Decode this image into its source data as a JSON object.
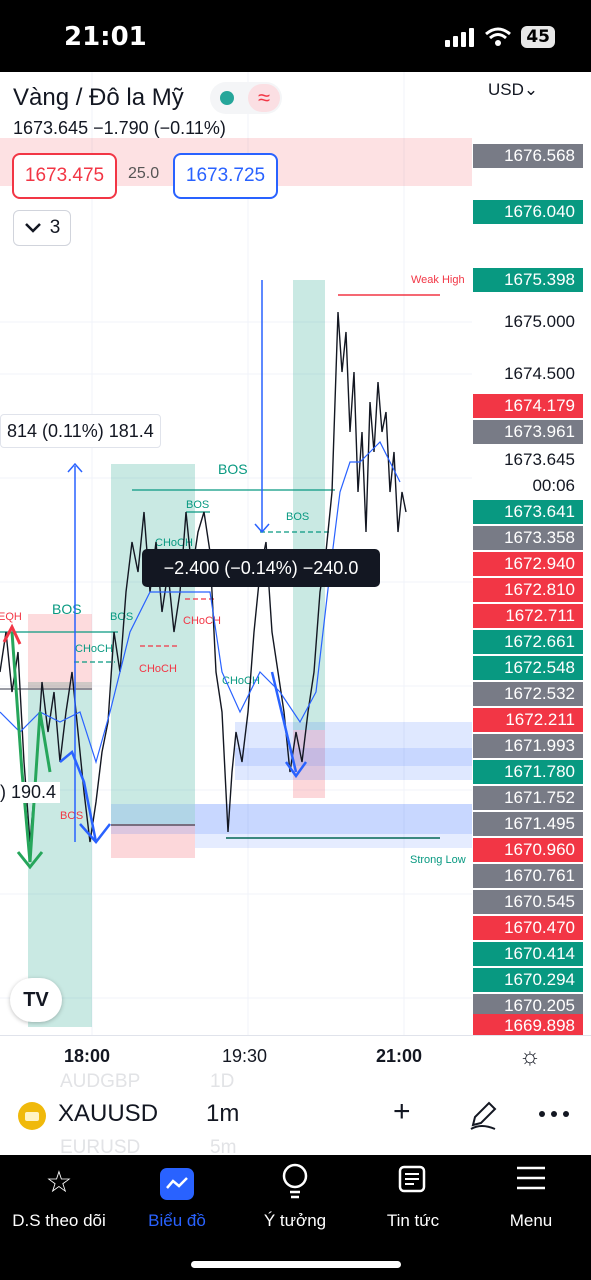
{
  "status_bar": {
    "time": "21:01",
    "battery": "45"
  },
  "header": {
    "title": "Vàng / Đô la Mỹ",
    "approx_glyph": "≈",
    "price_line": "1673.645 −1.790 (−0.11%)",
    "sell_price": "1673.475",
    "spread": "25.0",
    "buy_price": "1673.725",
    "collapse_count": "3",
    "currency": "USD"
  },
  "price_axis": [
    {
      "text": "1676.568",
      "style": "gray"
    },
    {
      "text": "1676.040",
      "style": "green"
    },
    {
      "text": "1675.398",
      "style": "green"
    },
    {
      "text": "1675.000",
      "style": "plain"
    },
    {
      "text": "1674.500",
      "style": "plain"
    },
    {
      "text": "1674.179",
      "style": "red"
    },
    {
      "text": "1673.961",
      "style": "gray"
    },
    {
      "text": "1673.645",
      "style": "plain"
    },
    {
      "text": "00:06",
      "style": "plain"
    },
    {
      "text": "1673.641",
      "style": "green"
    },
    {
      "text": "1673.358",
      "style": "gray"
    },
    {
      "text": "1672.940",
      "style": "red"
    },
    {
      "text": "1672.810",
      "style": "red"
    },
    {
      "text": "1672.711",
      "style": "red"
    },
    {
      "text": "1672.661",
      "style": "green"
    },
    {
      "text": "1672.548",
      "style": "green"
    },
    {
      "text": "1672.532",
      "style": "gray"
    },
    {
      "text": "1672.211",
      "style": "red"
    },
    {
      "text": "1671.993",
      "style": "gray"
    },
    {
      "text": "1671.780",
      "style": "green"
    },
    {
      "text": "1671.752",
      "style": "gray"
    },
    {
      "text": "1671.495",
      "style": "gray"
    },
    {
      "text": "1670.960",
      "style": "red"
    },
    {
      "text": "1670.761",
      "style": "gray"
    },
    {
      "text": "1670.545",
      "style": "gray"
    },
    {
      "text": "1670.470",
      "style": "red"
    },
    {
      "text": "1670.414",
      "style": "green"
    },
    {
      "text": "1670.294",
      "style": "green"
    },
    {
      "text": "1670.205",
      "style": "gray"
    },
    {
      "text": "1669.898",
      "style": "red"
    }
  ],
  "annotations": {
    "measure_up": "814 (0.11%) 181.4",
    "measure_down": "−2.400 (−0.14%) −240.0",
    "left_value": ") 190.4",
    "weak_high": "Weak High",
    "strong_low": "Strong Low",
    "bos": "BOS",
    "choch": "CHoCH",
    "eqh": "EQH"
  },
  "time_axis": {
    "t1": "18:00",
    "t2": "19:30",
    "t3": "21:00"
  },
  "toolbar": {
    "symbol": "XAUUSD",
    "timeframe": "1m",
    "ghost_sym1": "AUDGBP",
    "ghost_tf1": "1D",
    "ghost_sym2": "EURUSD",
    "ghost_tf2": "5m"
  },
  "nav": [
    {
      "label": "D.S theo dõi",
      "icon": "star-icon"
    },
    {
      "label": "Biểu đồ",
      "icon": "chart-icon"
    },
    {
      "label": "Ý tưởng",
      "icon": "lightbulb-icon"
    },
    {
      "label": "Tin tức",
      "icon": "news-icon"
    },
    {
      "label": "Menu",
      "icon": "menu-icon"
    }
  ],
  "colors": {
    "up": "#089981",
    "down": "#f23645",
    "accent": "#2962ff",
    "neutral": "#787b86"
  }
}
